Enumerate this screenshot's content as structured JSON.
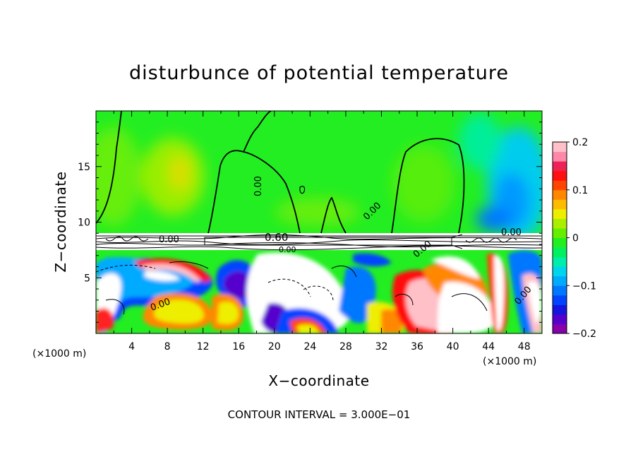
{
  "chart_data": {
    "type": "heatmap",
    "title": "disturbunce of potential temperature",
    "xlabel": "X−coordinate",
    "ylabel": "Z−coordinate",
    "x_unit_left": "(×1000 m)",
    "x_unit_right": "(×1000 m)",
    "xlim": [
      0,
      50
    ],
    "ylim": [
      0,
      20
    ],
    "x_ticks": [
      4,
      8,
      12,
      16,
      20,
      24,
      28,
      32,
      36,
      40,
      44,
      48
    ],
    "x_tick_labels": [
      "4",
      "8",
      "12",
      "16",
      "20",
      "24",
      "28",
      "32",
      "36",
      "40",
      "44",
      "48"
    ],
    "y_ticks": [
      5,
      10,
      15
    ],
    "y_tick_labels": [
      "5",
      "10",
      "15"
    ],
    "colorbar": {
      "min": -0.2,
      "max": 0.2,
      "ticks": [
        0.2,
        0.1,
        0,
        -0.1,
        -0.2
      ],
      "tick_labels": [
        "0.2",
        "0.1",
        "0",
        "−0.1",
        "−0.2"
      ],
      "colors": [
        "#8800aa",
        "#5500cc",
        "#1515dd",
        "#0044ff",
        "#0077ff",
        "#00aaff",
        "#00d5ee",
        "#00eeaa",
        "#00f060",
        "#22ee22",
        "#66ee00",
        "#aaee00",
        "#eeee00",
        "#ffbb00",
        "#ff8800",
        "#ff4400",
        "#ff1010",
        "#ee2255",
        "#ff88aa",
        "#ffc0c8"
      ]
    },
    "contour_labels": [
      "0.00",
      "0.00",
      "0.00",
      "0.00",
      "0.00",
      "0.60",
      "0.00",
      "0.00",
      "0.00"
    ],
    "contour_interval": "CONTOUR INTERVAL = 3.000E−01",
    "regions": [
      {
        "xlim": [
          0,
          50
        ],
        "ylim": [
          9,
          20
        ],
        "dominant": "near 0, slight positive (green)",
        "notes": "yellow-green maxima near x=9, cool cyan/blue minimum near x=45-48"
      },
      {
        "xlim": [
          0,
          50
        ],
        "ylim": [
          7.8,
          9
        ],
        "dominant": "saturated band, mixed",
        "notes": "white/black closely packed contours"
      },
      {
        "xlim": [
          0,
          50
        ],
        "ylim": [
          0,
          7.8
        ],
        "dominant": "strong mixed +/- (turbulent)",
        "notes": "red/orange/yellow and blue/purple swirls, white saturated regions"
      }
    ]
  }
}
